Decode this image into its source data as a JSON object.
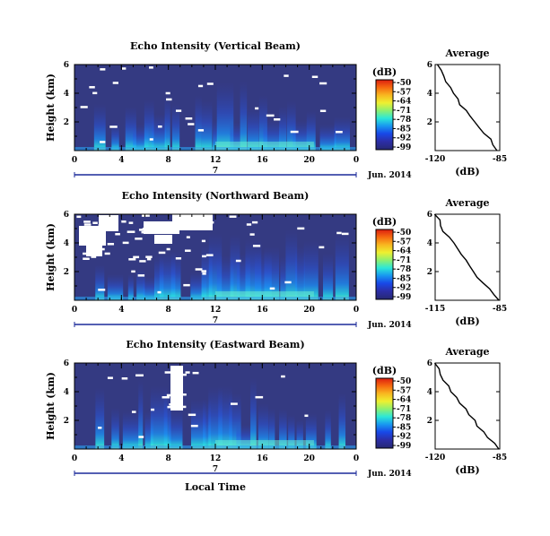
{
  "chart_data": [
    {
      "type": "heatmap",
      "title": "Echo Intensity (Vertical Beam)",
      "ylabel": "Height (km)",
      "y_ticks": [
        "6",
        "4",
        "2"
      ],
      "x_ticks": [
        "0",
        "4",
        "8",
        "12",
        "16",
        "20",
        "0"
      ],
      "date_day": "7",
      "date_label": "Jun. 2014",
      "colorbar": {
        "label": "(dB)",
        "ticks": [
          "-50",
          "-57",
          "-64",
          "-71",
          "-78",
          "-85",
          "-92",
          "-99"
        ]
      },
      "profile": {
        "title": "Average",
        "xlabel": "(dB)",
        "x_ticks": [
          "-120",
          "-85"
        ],
        "y_ticks": [
          "6",
          "4",
          "2"
        ],
        "x": [
          -86,
          -88,
          -90,
          -93,
          -96,
          -98,
          -101,
          -103,
          -106,
          -108,
          -110,
          -112,
          -114,
          -116,
          -117,
          -119
        ],
        "height_km": [
          0.0,
          0.4,
          0.8,
          1.2,
          1.6,
          2.0,
          2.4,
          2.8,
          3.2,
          3.6,
          4.0,
          4.4,
          4.8,
          5.2,
          5.6,
          6.0
        ]
      }
    },
    {
      "type": "heatmap",
      "title": "Echo Intensity (Northward Beam)",
      "ylabel": "Height (km)",
      "y_ticks": [
        "6",
        "4",
        "2"
      ],
      "x_ticks": [
        "0",
        "4",
        "8",
        "12",
        "16",
        "20",
        "0"
      ],
      "date_day": "7",
      "date_label": "Jun. 2014",
      "colorbar": {
        "label": "(dB)",
        "ticks": [
          "-50",
          "-57",
          "-64",
          "-71",
          "-78",
          "-85",
          "-92",
          "-99"
        ]
      },
      "profile": {
        "title": "Average",
        "xlabel": "(dB)",
        "x_ticks": [
          "-115",
          "-85"
        ],
        "y_ticks": [
          "6",
          "4",
          "2"
        ],
        "x": [
          -86,
          -88,
          -90,
          -92,
          -95,
          -97,
          -99,
          -101,
          -103,
          -105,
          -107,
          -109,
          -111,
          -112,
          -113,
          -115
        ],
        "height_km": [
          0.0,
          0.4,
          0.8,
          1.2,
          1.6,
          2.0,
          2.4,
          2.8,
          3.2,
          3.6,
          4.0,
          4.4,
          4.8,
          5.2,
          5.6,
          6.0
        ]
      }
    },
    {
      "type": "heatmap",
      "title": "Echo Intensity (Eastward Beam)",
      "ylabel": "Height (km)",
      "xlabel": "Local Time",
      "y_ticks": [
        "6",
        "4",
        "2"
      ],
      "x_ticks": [
        "0",
        "4",
        "8",
        "12",
        "16",
        "20",
        "0"
      ],
      "date_day": "7",
      "date_label": "Jun. 2014",
      "colorbar": {
        "label": "(dB)",
        "ticks": [
          "-50",
          "-57",
          "-64",
          "-71",
          "-78",
          "-85",
          "-92",
          "-99"
        ]
      },
      "profile": {
        "title": "Average",
        "xlabel": "(dB)",
        "x_ticks": [
          "-120",
          "-85"
        ],
        "y_ticks": [
          "6",
          "4",
          "2"
        ],
        "x": [
          -86,
          -88,
          -91,
          -94,
          -97,
          -99,
          -102,
          -104,
          -107,
          -109,
          -111,
          -113,
          -115,
          -117,
          -118,
          -120
        ],
        "height_km": [
          0.0,
          0.4,
          0.8,
          1.2,
          1.6,
          2.0,
          2.4,
          2.8,
          3.2,
          3.6,
          4.0,
          4.4,
          4.8,
          5.2,
          5.6,
          6.0
        ]
      }
    }
  ],
  "colors": {
    "background_field": "#343a82",
    "colorbar_gradient": [
      "#dc1e10",
      "#f66a10",
      "#f8b820",
      "#eef030",
      "#8ef070",
      "#2ce8d8",
      "#1898f0",
      "#1848e8",
      "#2c2ea8",
      "#262872"
    ]
  }
}
